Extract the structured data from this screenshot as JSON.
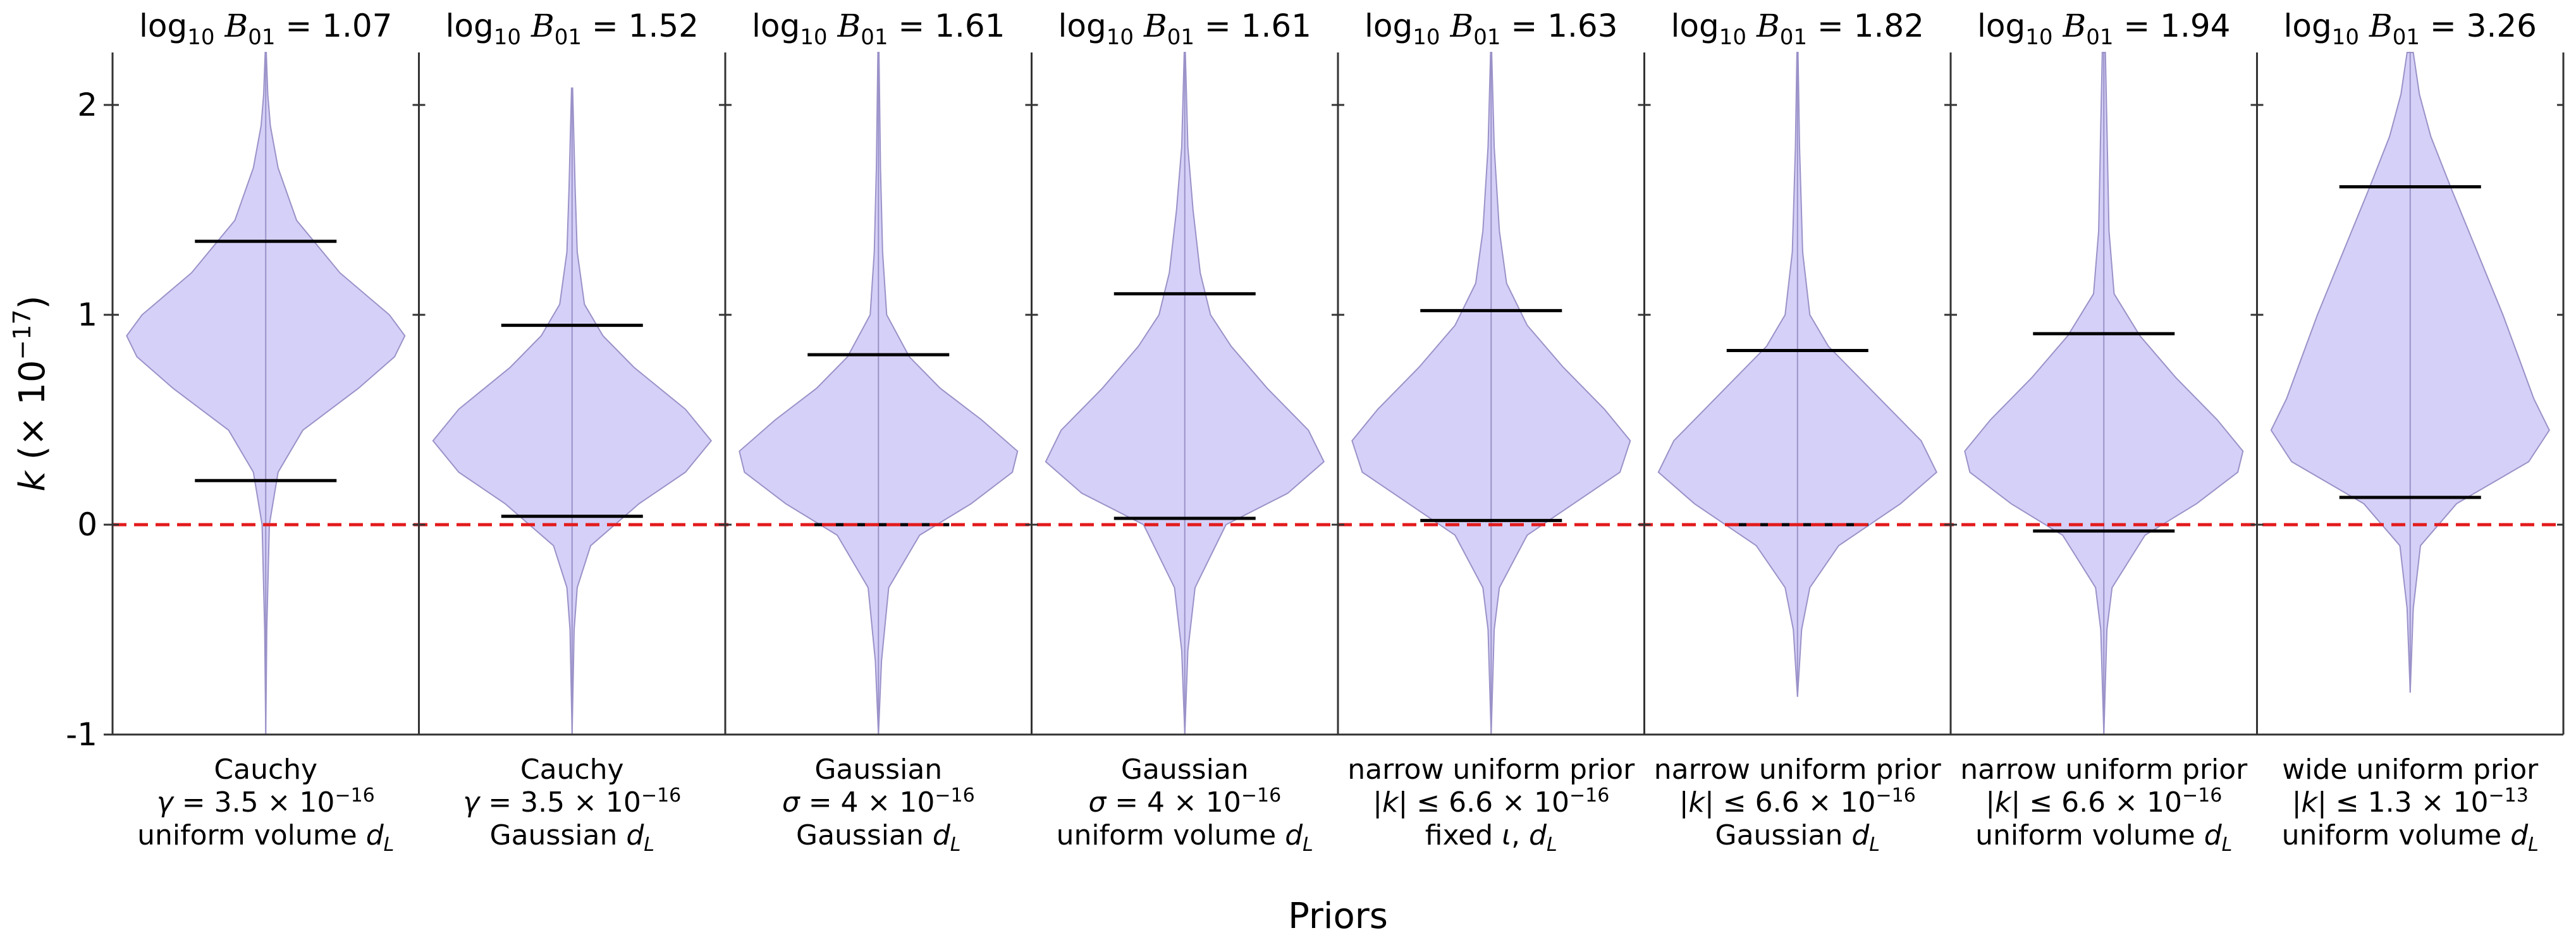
{
  "chart_data": {
    "type": "violin",
    "xlabel": "Priors",
    "ylabel": "k (× 10⁻¹⁷)",
    "ylabel_parts": {
      "var": "k",
      "prefix": "(× 10",
      "exp": "−17",
      "suffix": ")"
    },
    "ylim": [
      -1,
      2.25
    ],
    "yticks": [
      -1,
      0,
      1,
      2
    ],
    "ytick_labels": [
      "-1",
      "0",
      "1",
      "2"
    ],
    "reference_line": {
      "y": 0,
      "color": "#e31a1c",
      "style": "dashed"
    },
    "violin_fill": "#d5d0f7",
    "violin_edge": "#9a92c8",
    "whisker_color": "#000000",
    "panels": [
      {
        "title": {
          "lhs": "log",
          "sub": "10",
          "bf": "B",
          "bfsub": "01",
          "eq": " = ",
          "value": "1.07"
        },
        "label_lines": [
          [
            {
              "t": "Cauchy"
            }
          ],
          [
            {
              "t": "γ",
              "i": true
            },
            {
              "t": " = 3.5 × 10"
            },
            {
              "t": "−16",
              "sup": true
            }
          ],
          [
            {
              "t": "uniform volume "
            },
            {
              "t": "d",
              "i": true
            },
            {
              "t": "L",
              "sub": true,
              "i": true
            }
          ]
        ],
        "lower": 0.21,
        "upper": 1.35,
        "min": -1.0,
        "max": 2.25,
        "profile": [
          [
            -1.0,
            0.0
          ],
          [
            -0.5,
            0.1
          ],
          [
            0.0,
            0.35
          ],
          [
            0.25,
            1.2
          ],
          [
            0.45,
            3.6
          ],
          [
            0.65,
            9.0
          ],
          [
            0.8,
            12.5
          ],
          [
            0.9,
            13.5
          ],
          [
            1.0,
            12.0
          ],
          [
            1.2,
            7.2
          ],
          [
            1.45,
            3.0
          ],
          [
            1.7,
            1.2
          ],
          [
            1.9,
            0.45
          ],
          [
            2.05,
            0.2
          ],
          [
            2.25,
            0.05
          ]
        ]
      },
      {
        "title": {
          "lhs": "log",
          "sub": "10",
          "bf": "B",
          "bfsub": "01",
          "eq": " = ",
          "value": "1.52"
        },
        "label_lines": [
          [
            {
              "t": "Cauchy"
            }
          ],
          [
            {
              "t": "γ",
              "i": true
            },
            {
              "t": " = 3.5 × 10"
            },
            {
              "t": "−16",
              "sup": true
            }
          ],
          [
            {
              "t": "Gaussian "
            },
            {
              "t": "d",
              "i": true
            },
            {
              "t": "L",
              "sub": true,
              "i": true
            }
          ]
        ],
        "lower": 0.04,
        "upper": 0.95,
        "min": -1.0,
        "max": 2.08,
        "profile": [
          [
            -1.0,
            0.0
          ],
          [
            -0.5,
            0.2
          ],
          [
            -0.3,
            0.5
          ],
          [
            -0.1,
            1.8
          ],
          [
            0.1,
            6.5
          ],
          [
            0.25,
            11.0
          ],
          [
            0.4,
            13.5
          ],
          [
            0.55,
            11.0
          ],
          [
            0.75,
            6.0
          ],
          [
            0.9,
            3.0
          ],
          [
            1.05,
            1.2
          ],
          [
            1.3,
            0.5
          ],
          [
            1.6,
            0.3
          ],
          [
            2.08,
            0.05
          ]
        ]
      },
      {
        "title": {
          "lhs": "log",
          "sub": "10",
          "bf": "B",
          "bfsub": "01",
          "eq": " = ",
          "value": "1.61"
        },
        "label_lines": [
          [
            {
              "t": "Gaussian"
            }
          ],
          [
            {
              "t": "σ",
              "i": true
            },
            {
              "t": " = 4 × 10"
            },
            {
              "t": "−16",
              "sup": true
            }
          ],
          [
            {
              "t": "Gaussian "
            },
            {
              "t": "d",
              "i": true
            },
            {
              "t": "L",
              "sub": true,
              "i": true
            }
          ]
        ],
        "lower": 0.0,
        "upper": 0.81,
        "min": -1.0,
        "max": 2.25,
        "profile": [
          [
            -1.0,
            0.0
          ],
          [
            -0.65,
            0.3
          ],
          [
            -0.3,
            1.0
          ],
          [
            -0.05,
            4.0
          ],
          [
            0.1,
            9.0
          ],
          [
            0.25,
            13.0
          ],
          [
            0.35,
            13.5
          ],
          [
            0.5,
            10.0
          ],
          [
            0.65,
            6.0
          ],
          [
            0.8,
            3.0
          ],
          [
            1.0,
            0.8
          ],
          [
            1.3,
            0.4
          ],
          [
            1.7,
            0.2
          ],
          [
            2.25,
            0.05
          ]
        ]
      },
      {
        "title": {
          "lhs": "log",
          "sub": "10",
          "bf": "B",
          "bfsub": "01",
          "eq": " = ",
          "value": "1.61"
        },
        "label_lines": [
          [
            {
              "t": "Gaussian"
            }
          ],
          [
            {
              "t": "σ",
              "i": true
            },
            {
              "t": " = 4 × 10"
            },
            {
              "t": "−16",
              "sup": true
            }
          ],
          [
            {
              "t": "uniform volume "
            },
            {
              "t": "d",
              "i": true
            },
            {
              "t": "L",
              "sub": true,
              "i": true
            }
          ]
        ],
        "lower": 0.03,
        "upper": 1.1,
        "min": -1.0,
        "max": 2.25,
        "profile": [
          [
            -1.0,
            0.0
          ],
          [
            -0.6,
            0.3
          ],
          [
            -0.3,
            1.0
          ],
          [
            0.0,
            4.0
          ],
          [
            0.15,
            10.0
          ],
          [
            0.3,
            13.5
          ],
          [
            0.45,
            12.0
          ],
          [
            0.65,
            8.0
          ],
          [
            0.85,
            4.5
          ],
          [
            1.0,
            2.5
          ],
          [
            1.2,
            1.5
          ],
          [
            1.5,
            0.8
          ],
          [
            1.8,
            0.3
          ],
          [
            2.25,
            0.05
          ]
        ]
      },
      {
        "title": {
          "lhs": "log",
          "sub": "10",
          "bf": "B",
          "bfsub": "01",
          "eq": " = ",
          "value": "1.63"
        },
        "label_lines": [
          [
            {
              "t": "narrow uniform prior"
            }
          ],
          [
            {
              "t": "|"
            },
            {
              "t": "k",
              "i": true
            },
            {
              "t": "| ≤ 6.6 × 10"
            },
            {
              "t": "−16",
              "sup": true
            }
          ],
          [
            {
              "t": "fixed "
            },
            {
              "t": "ι",
              "i": true
            },
            {
              "t": ",  "
            },
            {
              "t": "d",
              "i": true
            },
            {
              "t": "L",
              "sub": true,
              "i": true
            }
          ]
        ],
        "lower": 0.02,
        "upper": 1.02,
        "min": -1.0,
        "max": 2.25,
        "profile": [
          [
            -1.0,
            0.0
          ],
          [
            -0.5,
            0.3
          ],
          [
            -0.3,
            0.8
          ],
          [
            -0.05,
            3.5
          ],
          [
            0.1,
            8.0
          ],
          [
            0.25,
            12.5
          ],
          [
            0.4,
            13.5
          ],
          [
            0.55,
            11.0
          ],
          [
            0.75,
            7.0
          ],
          [
            0.95,
            3.5
          ],
          [
            1.15,
            1.5
          ],
          [
            1.4,
            0.8
          ],
          [
            1.8,
            0.3
          ],
          [
            2.25,
            0.05
          ]
        ]
      },
      {
        "title": {
          "lhs": "log",
          "sub": "10",
          "bf": "B",
          "bfsub": "01",
          "eq": " = ",
          "value": "1.82"
        },
        "label_lines": [
          [
            {
              "t": "narrow uniform prior"
            }
          ],
          [
            {
              "t": "|"
            },
            {
              "t": "k",
              "i": true
            },
            {
              "t": "| ≤ 6.6 × 10"
            },
            {
              "t": "−16",
              "sup": true
            }
          ],
          [
            {
              "t": "Gaussian "
            },
            {
              "t": "d",
              "i": true
            },
            {
              "t": "L",
              "sub": true,
              "i": true
            }
          ]
        ],
        "lower": 0.0,
        "upper": 0.83,
        "min": -0.82,
        "max": 2.25,
        "profile": [
          [
            -0.82,
            0.0
          ],
          [
            -0.5,
            0.4
          ],
          [
            -0.3,
            1.2
          ],
          [
            -0.1,
            4.0
          ],
          [
            0.1,
            10.0
          ],
          [
            0.25,
            13.5
          ],
          [
            0.4,
            12.0
          ],
          [
            0.55,
            9.0
          ],
          [
            0.7,
            6.0
          ],
          [
            0.85,
            3.0
          ],
          [
            1.0,
            1.2
          ],
          [
            1.3,
            0.5
          ],
          [
            1.8,
            0.2
          ],
          [
            2.25,
            0.05
          ]
        ]
      },
      {
        "title": {
          "lhs": "log",
          "sub": "10",
          "bf": "B",
          "bfsub": "01",
          "eq": " = ",
          "value": "1.94"
        },
        "label_lines": [
          [
            {
              "t": "narrow uniform prior"
            }
          ],
          [
            {
              "t": "|"
            },
            {
              "t": "k",
              "i": true
            },
            {
              "t": "| ≤ 6.6 × 10"
            },
            {
              "t": "−16",
              "sup": true
            }
          ],
          [
            {
              "t": "uniform volume "
            },
            {
              "t": "d",
              "i": true
            },
            {
              "t": "L",
              "sub": true,
              "i": true
            }
          ]
        ],
        "lower": -0.03,
        "upper": 0.91,
        "min": -1.0,
        "max": 2.25,
        "profile": [
          [
            -1.0,
            0.0
          ],
          [
            -0.5,
            0.3
          ],
          [
            -0.3,
            0.8
          ],
          [
            -0.05,
            4.0
          ],
          [
            0.1,
            9.0
          ],
          [
            0.25,
            13.0
          ],
          [
            0.35,
            13.5
          ],
          [
            0.5,
            11.0
          ],
          [
            0.7,
            7.0
          ],
          [
            0.9,
            3.5
          ],
          [
            1.1,
            1.0
          ],
          [
            1.4,
            0.5
          ],
          [
            1.9,
            0.3
          ],
          [
            2.25,
            0.15
          ]
        ]
      },
      {
        "title": {
          "lhs": "log",
          "sub": "10",
          "bf": "B",
          "bfsub": "01",
          "eq": " = ",
          "value": "3.26"
        },
        "label_lines": [
          [
            {
              "t": "wide uniform prior"
            }
          ],
          [
            {
              "t": "|"
            },
            {
              "t": "k",
              "i": true
            },
            {
              "t": "| ≤ 1.3 × 10"
            },
            {
              "t": "−13",
              "sup": true
            }
          ],
          [
            {
              "t": "uniform volume "
            },
            {
              "t": "d",
              "i": true
            },
            {
              "t": "L",
              "sub": true,
              "i": true
            }
          ]
        ],
        "lower": 0.13,
        "upper": 1.61,
        "min": -0.8,
        "max": 2.25,
        "profile": [
          [
            -0.8,
            0.0
          ],
          [
            -0.4,
            0.3
          ],
          [
            -0.1,
            1.0
          ],
          [
            0.1,
            4.5
          ],
          [
            0.3,
            11.5
          ],
          [
            0.45,
            13.5
          ],
          [
            0.6,
            12.0
          ],
          [
            0.8,
            10.5
          ],
          [
            1.0,
            9.0
          ],
          [
            1.3,
            6.5
          ],
          [
            1.6,
            4.0
          ],
          [
            1.85,
            2.0
          ],
          [
            2.05,
            0.9
          ],
          [
            2.25,
            0.3
          ]
        ]
      }
    ]
  }
}
